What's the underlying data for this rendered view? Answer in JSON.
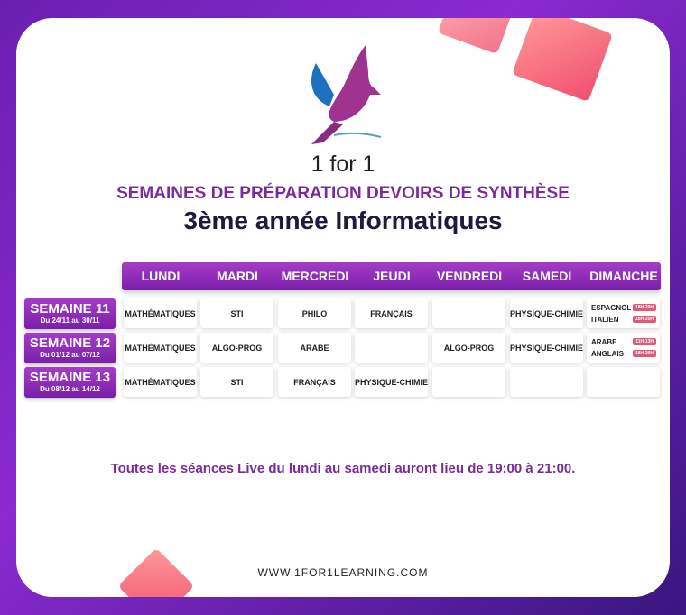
{
  "brand": "1 for 1",
  "title_line1": "SEMAINES DE PRÉPARATION DEVOIRS DE SYNTHÈSE",
  "title_line2": "3ème année Informatiques",
  "days": [
    "LUNDI",
    "MARDI",
    "MERCREDI",
    "JEUDI",
    "VENDREDI",
    "SAMEDI",
    "DIMANCHE"
  ],
  "weeks": [
    {
      "name": "SEMAINE 11",
      "dates": "Du 24/11 au 30/11",
      "cells": [
        "MATHÉMATIQUES",
        "STI",
        "PHILO",
        "FRANÇAIS",
        "",
        "PHYSIQUE-CHIMIE"
      ],
      "sunday": [
        {
          "subject": "ESPAGNOL",
          "time": "18H-20H"
        },
        {
          "subject": "ITALIEN",
          "time": "18H-20H"
        }
      ]
    },
    {
      "name": "SEMAINE 12",
      "dates": "Du 01/12 au 07/12",
      "cells": [
        "MATHÉMATIQUES",
        "ALGO-PROG",
        "ARABE",
        "",
        "ALGO-PROG",
        "PHYSIQUE-CHIMIE"
      ],
      "sunday": [
        {
          "subject": "ARABE",
          "time": "11H-13H"
        },
        {
          "subject": "ANGLAIS",
          "time": "18H-20H"
        }
      ]
    },
    {
      "name": "SEMAINE 13",
      "dates": "Du 08/12 au 14/12",
      "cells": [
        "MATHÉMATIQUES",
        "STI",
        "FRANÇAIS",
        "PHYSIQUE-CHIMIE",
        "",
        ""
      ],
      "sunday": []
    }
  ],
  "note": "Toutes les séances Live du lundi au samedi auront lieu de 19:00 à 21:00.",
  "url": "WWW.1FOR1LEARNING.COM",
  "colors": {
    "accent": "#7b2a9c",
    "title": "#1c1a3e",
    "badge": "#e0587a"
  }
}
